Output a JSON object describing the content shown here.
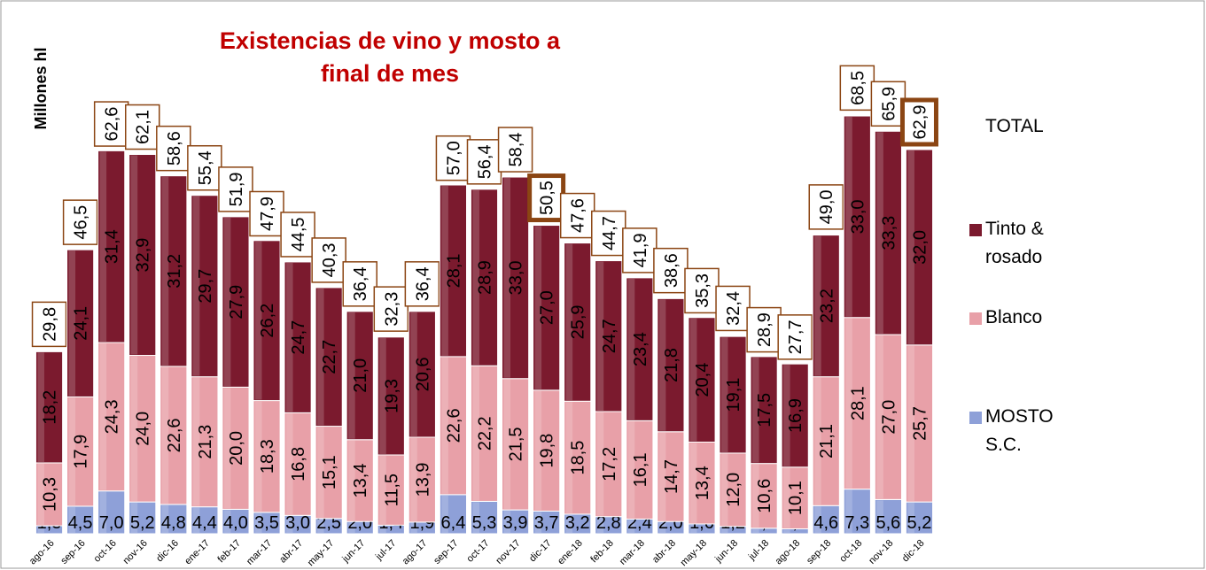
{
  "chart_data": {
    "type": "stacked_bar",
    "title": "Existencias de vino y mosto a final de mes",
    "y_axis_label": "Millones hl",
    "categories": [
      "ago-16",
      "sep-16",
      "oct-16",
      "nov-16",
      "dic-16",
      "ene-17",
      "feb-17",
      "mar-17",
      "abr-17",
      "may-17",
      "jun-17",
      "jul-17",
      "ago-17",
      "sep-17",
      "oct-17",
      "nov-17",
      "dic-17",
      "ene-18",
      "feb-18",
      "mar-18",
      "abr-18",
      "may-18",
      "jun-18",
      "jul-18",
      "ago-18",
      "sep-18",
      "oct-18",
      "nov-18",
      "dic-18"
    ],
    "ylim": [
      0,
      80
    ],
    "series": [
      {
        "name": "MOSTO S.C.",
        "color": "#8ea0d8",
        "values": [
          1.3,
          4.5,
          7.0,
          5.2,
          4.8,
          4.4,
          4.0,
          3.5,
          3.0,
          2.5,
          2.0,
          1.4,
          1.9,
          6.4,
          5.3,
          3.9,
          3.7,
          3.2,
          2.8,
          2.4,
          2.0,
          1.6,
          1.2,
          0.9,
          0.8,
          4.6,
          7.3,
          5.6,
          5.2
        ],
        "value_labels": [
          "1,3",
          "4,5",
          "7,0",
          "5,2",
          "4,8",
          "4,4",
          "4,0",
          "3,5",
          "3,0",
          "2,5",
          "2,0",
          "1,4",
          "1,9",
          "6,4",
          "5,3",
          "3,9",
          "3,7",
          "3,2",
          "2,8",
          "2,4",
          "2,0",
          "1,6",
          "1,2",
          "0,9",
          "0,8",
          "4,6",
          "7,3",
          "5,6",
          "5,2"
        ]
      },
      {
        "name": "Blanco",
        "color": "#e8a0a8",
        "values": [
          10.3,
          17.9,
          24.3,
          24.0,
          22.6,
          21.3,
          20.0,
          18.3,
          16.8,
          15.1,
          13.4,
          11.5,
          13.9,
          22.6,
          22.2,
          21.5,
          19.8,
          18.5,
          17.2,
          16.1,
          14.7,
          13.4,
          12.0,
          10.6,
          10.1,
          21.1,
          28.1,
          27.0,
          25.7
        ],
        "value_labels": [
          "10,3",
          "17,9",
          "24,3",
          "24,0",
          "22,6",
          "21,3",
          "20,0",
          "18,3",
          "16,8",
          "15,1",
          "13,4",
          "11,5",
          "13,9",
          "22,6",
          "22,2",
          "21,5",
          "19,8",
          "18,5",
          "17,2",
          "16,1",
          "14,7",
          "13,4",
          "12,0",
          "10,6",
          "10,1",
          "21,1",
          "28,1",
          "27,0",
          "25,7"
        ]
      },
      {
        "name": "Tinto & rosado",
        "color": "#7b1a2e",
        "values": [
          18.2,
          24.1,
          31.4,
          32.9,
          31.2,
          29.7,
          27.9,
          26.2,
          24.7,
          22.7,
          21.0,
          19.3,
          20.6,
          28.1,
          28.9,
          33.0,
          27.0,
          25.9,
          24.7,
          23.4,
          21.8,
          20.4,
          19.1,
          17.5,
          16.9,
          23.2,
          33.0,
          33.3,
          32.0
        ],
        "value_labels": [
          "18,2",
          "24,1",
          "31,4",
          "32,9",
          "31,2",
          "29,7",
          "27,9",
          "26,2",
          "24,7",
          "22,7",
          "21,0",
          "19,3",
          "20,6",
          "28,1",
          "28,9",
          "33,0",
          "27,0",
          "25,9",
          "24,7",
          "23,4",
          "21,8",
          "20,4",
          "19,1",
          "17,5",
          "16,9",
          "23,2",
          "33,0",
          "33,3",
          "32,0"
        ]
      }
    ],
    "totals_name": "TOTAL",
    "totals": [
      29.8,
      46.5,
      62.6,
      62.1,
      58.6,
      55.4,
      51.9,
      47.9,
      44.5,
      40.3,
      36.4,
      32.3,
      36.4,
      57.0,
      56.4,
      58.4,
      50.5,
      47.6,
      44.7,
      41.9,
      38.6,
      35.3,
      32.4,
      28.9,
      27.7,
      49.0,
      68.5,
      65.9,
      62.9
    ],
    "totals_value_labels": [
      "29,8",
      "46,5",
      "62,6",
      "62,1",
      "58,6",
      "55,4",
      "51,9",
      "47,9",
      "44,5",
      "40,3",
      "36,4",
      "32,3",
      "36,4",
      "57,0",
      "56,4",
      "58,4",
      "50,5",
      "47,6",
      "44,7",
      "41,9",
      "38,6",
      "35,3",
      "32,4",
      "28,9",
      "27,7",
      "49,0",
      "68,5",
      "65,9",
      "62,9"
    ],
    "totals_box_color": "#8b4513",
    "highlighted_categories": [
      "dic-17",
      "dic-18"
    ]
  }
}
